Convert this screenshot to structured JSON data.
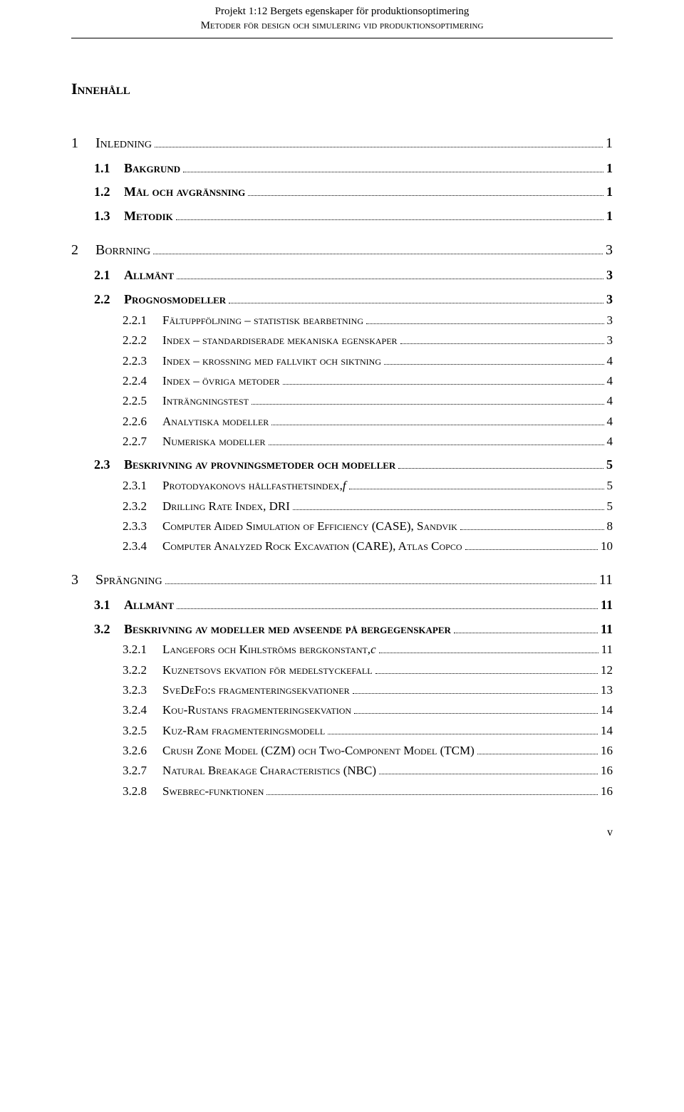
{
  "header": {
    "line1": "Projekt 1:12 Bergets egenskaper för produktionsoptimering",
    "line2": "Metoder för design och simulering vid produktionsoptimering"
  },
  "title": "Innehåll",
  "toc": [
    {
      "level": 1,
      "num": "1",
      "label": "Inledning",
      "page": "1"
    },
    {
      "level": 2,
      "num": "1.1",
      "label": "Bakgrund",
      "page": "1"
    },
    {
      "level": 2,
      "num": "1.2",
      "label": "Mål och avgränsning",
      "page": "1"
    },
    {
      "level": 2,
      "num": "1.3",
      "label": "Metodik",
      "page": "1"
    },
    {
      "level": 1,
      "num": "2",
      "label": "Borrning",
      "page": "3"
    },
    {
      "level": 2,
      "num": "2.1",
      "label": "Allmänt",
      "page": "3"
    },
    {
      "level": 2,
      "num": "2.2",
      "label": "Prognosmodeller",
      "page": "3"
    },
    {
      "level": 3,
      "num": "2.2.1",
      "label": "Fältuppföljning – statistisk bearbetning",
      "page": "3"
    },
    {
      "level": 3,
      "num": "2.2.2",
      "label": "Index – standardiserade mekaniska egenskaper",
      "page": "3"
    },
    {
      "level": 3,
      "num": "2.2.3",
      "label": "Index – krossning med fallvikt och siktning",
      "page": "4"
    },
    {
      "level": 3,
      "num": "2.2.4",
      "label": "Index – övriga metoder",
      "page": "4"
    },
    {
      "level": 3,
      "num": "2.2.5",
      "label": "Inträngningstest",
      "page": "4"
    },
    {
      "level": 3,
      "num": "2.2.6",
      "label": "Analytiska modeller",
      "page": "4"
    },
    {
      "level": 3,
      "num": "2.2.7",
      "label": "Numeriska modeller",
      "page": "4"
    },
    {
      "level": 2,
      "num": "2.3",
      "label": "Beskrivning av provningsmetoder och modeller",
      "page": "5"
    },
    {
      "level": 3,
      "num": "2.3.1",
      "label": "Protodyakonovs hållfasthetsindex, ",
      "trail_italic": "f",
      "page": "5"
    },
    {
      "level": 3,
      "num": "2.3.2",
      "label": "Drilling Rate Index, DRI",
      "page": "5"
    },
    {
      "level": 3,
      "num": "2.3.3",
      "label": "Computer Aided Simulation of Efficiency (CASE), Sandvik",
      "page": "8"
    },
    {
      "level": 3,
      "num": "2.3.4",
      "label": "Computer Analyzed Rock Excavation (CARE), Atlas Copco",
      "page": "10"
    },
    {
      "level": 1,
      "num": "3",
      "label": "Sprängning",
      "page": "11"
    },
    {
      "level": 2,
      "num": "3.1",
      "label": "Allmänt",
      "page": "11"
    },
    {
      "level": 2,
      "num": "3.2",
      "label": "Beskrivning av modeller med avseende på bergegenskaper",
      "page": "11"
    },
    {
      "level": 3,
      "num": "3.2.1",
      "label": "Langefors och Kihlströms bergkonstant, ",
      "trail_italic": "c",
      "page": "11"
    },
    {
      "level": 3,
      "num": "3.2.2",
      "label": "Kuznetsovs ekvation för medelstyckefall",
      "page": "12"
    },
    {
      "level": 3,
      "num": "3.2.3",
      "label": "SveDeFo:s fragmenteringsekvationer",
      "page": "13"
    },
    {
      "level": 3,
      "num": "3.2.4",
      "label": "Kou-Rustans fragmenteringsekvation",
      "page": "14"
    },
    {
      "level": 3,
      "num": "3.2.5",
      "label": "Kuz-Ram fragmenteringsmodell",
      "page": "14"
    },
    {
      "level": 3,
      "num": "3.2.6",
      "label": "Crush Zone Model (CZM) och Two-Component Model (TCM)",
      "page": "16"
    },
    {
      "level": 3,
      "num": "3.2.7",
      "label": "Natural Breakage Characteristics (NBC)",
      "page": "16"
    },
    {
      "level": 3,
      "num": "3.2.8",
      "label": "Swebrec-funktionen",
      "page": "16"
    }
  ],
  "footer": "v"
}
